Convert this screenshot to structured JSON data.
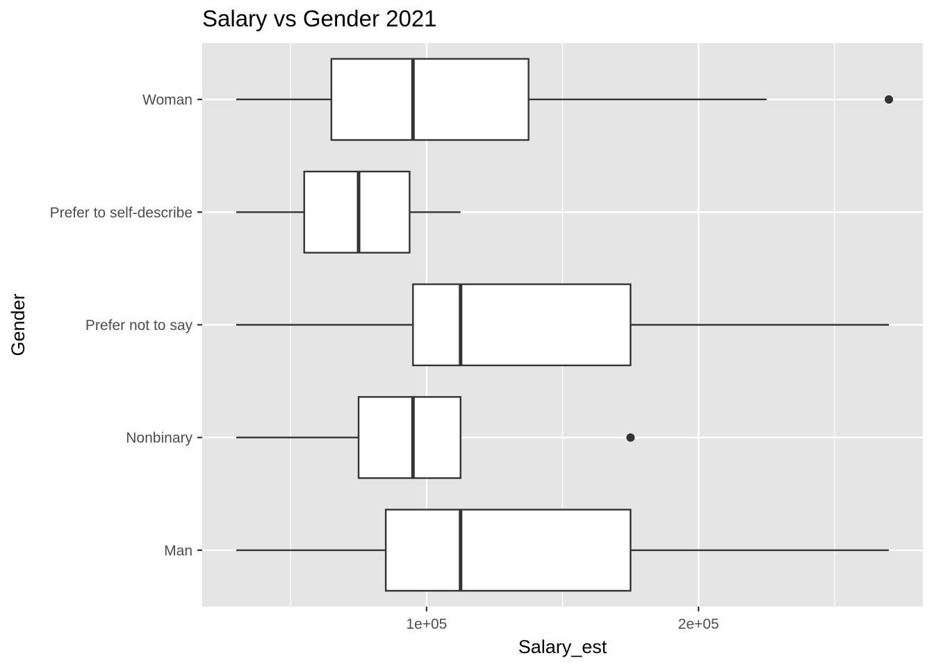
{
  "chart_data": {
    "type": "boxplot",
    "orientation": "horizontal",
    "title": "Salary vs Gender 2021",
    "xlabel": "Salary_est",
    "ylabel": "Gender",
    "xlim": [
      17500,
      282500
    ],
    "x_ticks": [
      {
        "value": 100000,
        "label": "1e+05"
      },
      {
        "value": 200000,
        "label": "2e+05"
      }
    ],
    "x_minor_gridlines": [
      50000,
      150000,
      250000
    ],
    "grid": true,
    "categories": [
      "Man",
      "Nonbinary",
      "Prefer not to say",
      "Prefer to self-describe",
      "Woman"
    ],
    "boxes": [
      {
        "category": "Man",
        "whisker_low": 30000,
        "q1": 85000,
        "median": 112500,
        "q3": 175000,
        "whisker_high": 270000,
        "outliers": []
      },
      {
        "category": "Nonbinary",
        "whisker_low": 30000,
        "q1": 75000,
        "median": 95000,
        "q3": 112500,
        "whisker_high": 112500,
        "outliers": [
          175000
        ]
      },
      {
        "category": "Prefer not to say",
        "whisker_low": 30000,
        "q1": 95000,
        "median": 112500,
        "q3": 175000,
        "whisker_high": 270000,
        "outliers": []
      },
      {
        "category": "Prefer to self-describe",
        "whisker_low": 30000,
        "q1": 55000,
        "median": 75000,
        "q3": 93750,
        "whisker_high": 112500,
        "outliers": []
      },
      {
        "category": "Woman",
        "whisker_low": 30000,
        "q1": 65000,
        "median": 95000,
        "q3": 137500,
        "whisker_high": 225000,
        "outliers": [
          270000
        ]
      }
    ],
    "colors": {
      "panel_background": "#e5e5e5",
      "gridline": "#ffffff",
      "box_fill": "#ffffff",
      "box_stroke": "#333333",
      "tick_label": "#4d4d4d",
      "tick_mark": "#333333",
      "text": "#000000"
    }
  }
}
